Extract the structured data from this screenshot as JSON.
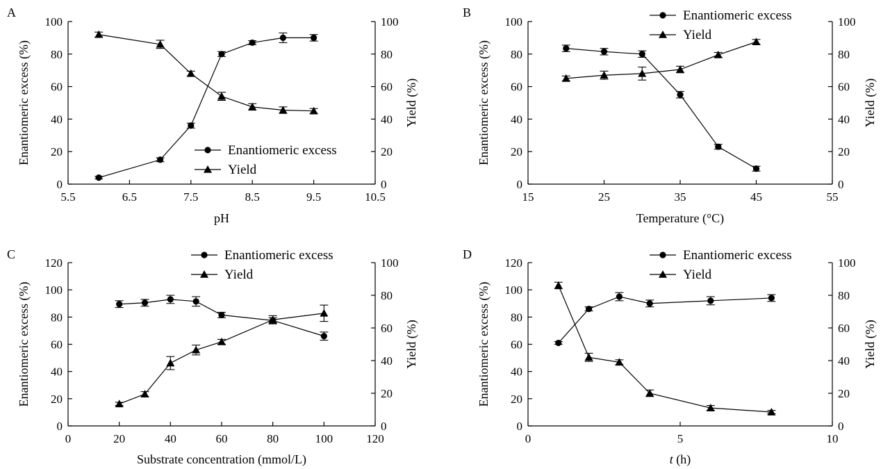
{
  "chart_data": [
    {
      "type": "line",
      "panel_label": "A",
      "xlabel": "pH",
      "ylabel": "Enantiomeric excess (%)",
      "y2label": "Yield (%)",
      "xlim": [
        5.5,
        10.5
      ],
      "ylim": [
        0,
        100
      ],
      "y2lim": [
        0,
        100
      ],
      "xticks": [
        "5.5",
        "6.5",
        "7.5",
        "8.5",
        "9.5",
        "10.5"
      ],
      "yticks": [
        "0",
        "20",
        "40",
        "60",
        "80",
        "100"
      ],
      "y2ticks": [
        "0",
        "20",
        "40",
        "60",
        "80",
        "100"
      ],
      "legend_position": "lower-right",
      "grid": false,
      "series": [
        {
          "name": "Enantiomeric excess",
          "marker": "circle",
          "axis": "left",
          "x": [
            6,
            7,
            7.5,
            8,
            8.5,
            9,
            9.5
          ],
          "values": [
            4,
            15,
            36,
            80,
            87,
            90,
            90
          ],
          "errors": [
            0.8,
            1.2,
            1.5,
            1.5,
            1.2,
            3,
            2
          ]
        },
        {
          "name": "Yield",
          "marker": "triangle",
          "axis": "right",
          "x": [
            6,
            7,
            7.5,
            8,
            8.5,
            9,
            9.5
          ],
          "values": [
            92,
            86,
            68,
            54,
            47.5,
            45.5,
            45
          ],
          "errors": [
            1.5,
            2.5,
            1.5,
            2.5,
            2,
            2,
            1.5
          ]
        }
      ]
    },
    {
      "type": "line",
      "panel_label": "B",
      "xlabel": "Temperature (°C)",
      "ylabel": "Enantiomeric excess (%)",
      "y2label": "Yield (%)",
      "xlim": [
        15,
        55
      ],
      "ylim": [
        0,
        100
      ],
      "y2lim": [
        0,
        100
      ],
      "xticks": [
        "15",
        "25",
        "35",
        "45",
        "55"
      ],
      "yticks": [
        "0",
        "20",
        "40",
        "60",
        "80",
        "100"
      ],
      "y2ticks": [
        "0",
        "20",
        "40",
        "60",
        "80",
        "100"
      ],
      "legend_position": "top-right",
      "grid": false,
      "series": [
        {
          "name": "Enantiomeric excess",
          "marker": "circle",
          "axis": "left",
          "x": [
            20,
            25,
            30,
            35,
            40,
            45
          ],
          "values": [
            83.5,
            81.5,
            80,
            55,
            23,
            9.5
          ],
          "errors": [
            2,
            2,
            2,
            2,
            1.5,
            1.5
          ]
        },
        {
          "name": "Yield",
          "marker": "triangle",
          "axis": "right",
          "x": [
            20,
            25,
            30,
            35,
            40,
            45
          ],
          "values": [
            65,
            67,
            68,
            70.5,
            79.5,
            87.5
          ],
          "errors": [
            1.5,
            2.5,
            4,
            2,
            1.5,
            1.5
          ]
        }
      ]
    },
    {
      "type": "line",
      "panel_label": "C",
      "xlabel": "Substrate concentration (mmol/L)",
      "ylabel": "Enantiomeric excess (%)",
      "y2label": "Yield (%)",
      "xlim": [
        0,
        120
      ],
      "ylim": [
        0,
        120
      ],
      "y2lim": [
        0,
        100
      ],
      "xticks": [
        "0",
        "20",
        "40",
        "60",
        "80",
        "100",
        "120"
      ],
      "yticks": [
        "0",
        "20",
        "40",
        "60",
        "80",
        "100",
        "120"
      ],
      "y2ticks": [
        "0",
        "20",
        "40",
        "60",
        "80",
        "100"
      ],
      "legend_position": "top-right",
      "grid": false,
      "series": [
        {
          "name": "Enantiomeric excess",
          "marker": "circle",
          "axis": "left",
          "x": [
            20,
            30,
            40,
            50,
            60,
            80,
            100
          ],
          "values": [
            89.5,
            90.5,
            93,
            91.5,
            81.5,
            77.5,
            66
          ],
          "errors": [
            2.5,
            2.5,
            3,
            3.5,
            2,
            2,
            3
          ]
        },
        {
          "name": "Yield",
          "marker": "triangle",
          "axis": "right",
          "x": [
            20,
            30,
            40,
            50,
            60,
            80,
            100
          ],
          "values": [
            13.5,
            19.5,
            38.5,
            46.5,
            51.5,
            65,
            69
          ],
          "errors": [
            1,
            1.5,
            4,
            3,
            1.5,
            2.5,
            5
          ]
        }
      ]
    },
    {
      "type": "line",
      "panel_label": "D",
      "xlabel_italic": "t",
      "xlabel_rest": " (h)",
      "ylabel": "Enantiomeric excess (%)",
      "y2label": "Yield (%)",
      "xlim": [
        0,
        10
      ],
      "ylim": [
        0,
        120
      ],
      "y2lim": [
        0,
        100
      ],
      "xticks": [
        "0",
        "5",
        "10"
      ],
      "yticks": [
        "0",
        "20",
        "40",
        "60",
        "80",
        "100",
        "120"
      ],
      "y2ticks": [
        "0",
        "20",
        "40",
        "60",
        "80",
        "100"
      ],
      "legend_position": "top-right",
      "grid": false,
      "series": [
        {
          "name": "Enantiomeric excess",
          "marker": "circle",
          "axis": "left",
          "x": [
            1,
            2,
            3,
            4,
            6,
            8
          ],
          "values": [
            61,
            86,
            95,
            90,
            92,
            94
          ],
          "errors": [
            1,
            1.5,
            3,
            2.5,
            3,
            2.5
          ]
        },
        {
          "name": "Yield",
          "marker": "triangle",
          "axis": "right",
          "x": [
            1,
            2,
            3,
            4,
            6,
            8
          ],
          "values": [
            86,
            42,
            39,
            20,
            11,
            8.5
          ],
          "errors": [
            2,
            2.5,
            1.5,
            2,
            1.5,
            1
          ]
        }
      ]
    }
  ]
}
